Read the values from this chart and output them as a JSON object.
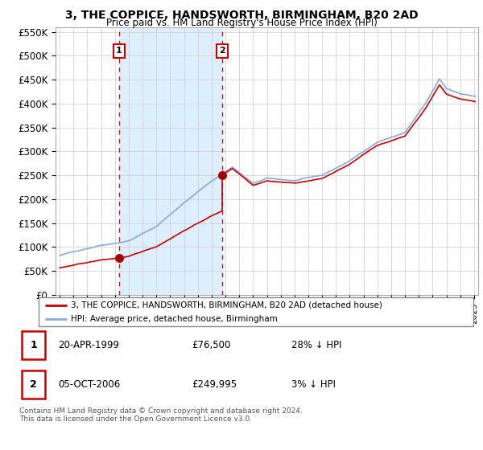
{
  "title": "3, THE COPPICE, HANDSWORTH, BIRMINGHAM, B20 2AD",
  "subtitle": "Price paid vs. HM Land Registry's House Price Index (HPI)",
  "legend_line1": "3, THE COPPICE, HANDSWORTH, BIRMINGHAM, B20 2AD (detached house)",
  "legend_line2": "HPI: Average price, detached house, Birmingham",
  "transaction1_label": "1",
  "transaction1_date": "20-APR-1999",
  "transaction1_price": "£76,500",
  "transaction1_hpi": "28% ↓ HPI",
  "transaction1_year": 1999.3,
  "transaction1_value": 76500,
  "transaction2_label": "2",
  "transaction2_date": "05-OCT-2006",
  "transaction2_price": "£249,995",
  "transaction2_hpi": "3% ↓ HPI",
  "transaction2_year": 2006.77,
  "transaction2_value": 249995,
  "footer": "Contains HM Land Registry data © Crown copyright and database right 2024.\nThis data is licensed under the Open Government Licence v3.0.",
  "ylim": [
    0,
    560000
  ],
  "yticks": [
    0,
    50000,
    100000,
    150000,
    200000,
    250000,
    300000,
    350000,
    400000,
    450000,
    500000,
    550000
  ],
  "background_color": "#ffffff",
  "grid_color": "#cccccc",
  "red_line_color": "#cc0000",
  "blue_line_color": "#88aadd",
  "shade_color": "#ddeeff",
  "vline_color": "#cc0000",
  "marker_box_color": "#cc0000",
  "xlim_left": 1994.7,
  "xlim_right": 2025.3
}
